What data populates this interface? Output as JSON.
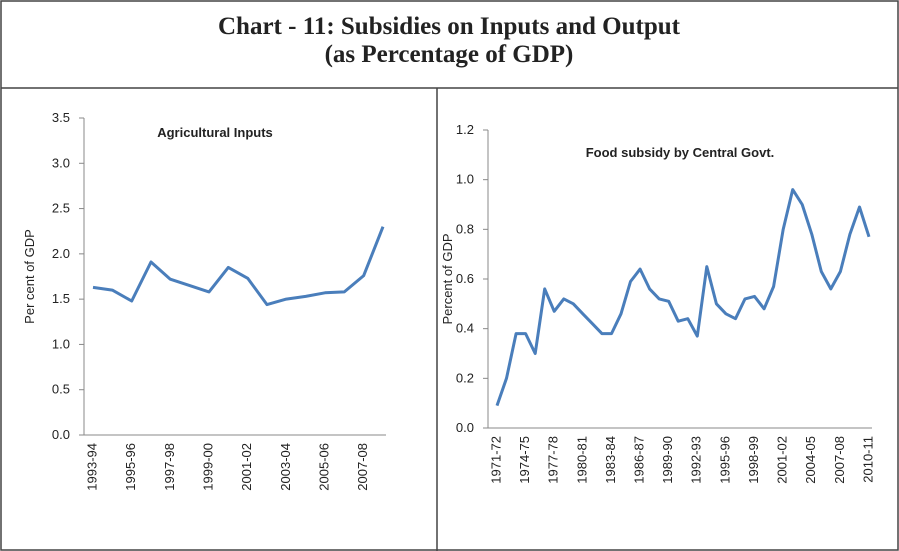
{
  "title": [
    "Chart - 11: Subsidies on Inputs and Output",
    "(as Percentage of GDP)"
  ],
  "chart_data": [
    {
      "type": "line",
      "title": "Agricultural Inputs",
      "y_label": "Per cent  of GDP",
      "color": "#4a7ebb",
      "categories": [
        "1993-94",
        null,
        "1995-96",
        null,
        "1997-98",
        null,
        "1999-00",
        null,
        "2001-02",
        null,
        "2003-04",
        null,
        "2005-06",
        null,
        "2007-08",
        null
      ],
      "values": [
        1.63,
        1.6,
        1.48,
        1.91,
        1.72,
        1.65,
        1.58,
        1.85,
        1.73,
        1.44,
        1.5,
        1.53,
        1.57,
        1.58,
        1.76,
        2.3
      ],
      "ylim": [
        0,
        3.5
      ],
      "yticks": [
        {
          "value": 0,
          "label": "0.0"
        },
        0.5,
        {
          "value": 1,
          "label": "1.0"
        },
        1.5,
        {
          "value": 2,
          "label": "2.0"
        },
        2.5,
        {
          "value": 3,
          "label": "3.0"
        },
        3.5
      ]
    },
    {
      "type": "line",
      "title": "Food subsidy by Central Govt.",
      "y_label": "Percent of GDP",
      "color": "#4a7ebb",
      "categories": [
        "1971-72",
        null,
        null,
        "1974-75",
        null,
        null,
        "1977-78",
        null,
        null,
        "1980-81",
        null,
        null,
        "1983-84",
        null,
        null,
        "1986-87",
        null,
        null,
        "1989-90",
        null,
        null,
        "1992-93",
        null,
        null,
        "1995-96",
        null,
        null,
        "1998-99",
        null,
        null,
        "2001-02",
        null,
        null,
        "2004-05",
        null,
        null,
        "2007-08",
        null,
        null,
        "2010-11"
      ],
      "values": [
        0.09,
        0.2,
        0.38,
        0.38,
        0.3,
        0.56,
        0.47,
        0.52,
        0.5,
        0.46,
        0.42,
        0.38,
        0.38,
        0.46,
        0.59,
        0.64,
        0.56,
        0.52,
        0.51,
        0.43,
        0.44,
        0.37,
        0.65,
        0.5,
        0.46,
        0.44,
        0.52,
        0.53,
        0.48,
        0.57,
        0.8,
        0.96,
        0.9,
        0.78,
        0.63,
        0.56,
        0.63,
        0.78,
        0.89,
        0.77
      ],
      "ylim": [
        0,
        1.2
      ],
      "yticks": [
        {
          "value": 0,
          "label": "0.0"
        },
        0.2,
        0.4,
        0.6,
        0.8,
        {
          "value": 1,
          "label": "1.0"
        },
        1.2
      ]
    }
  ]
}
